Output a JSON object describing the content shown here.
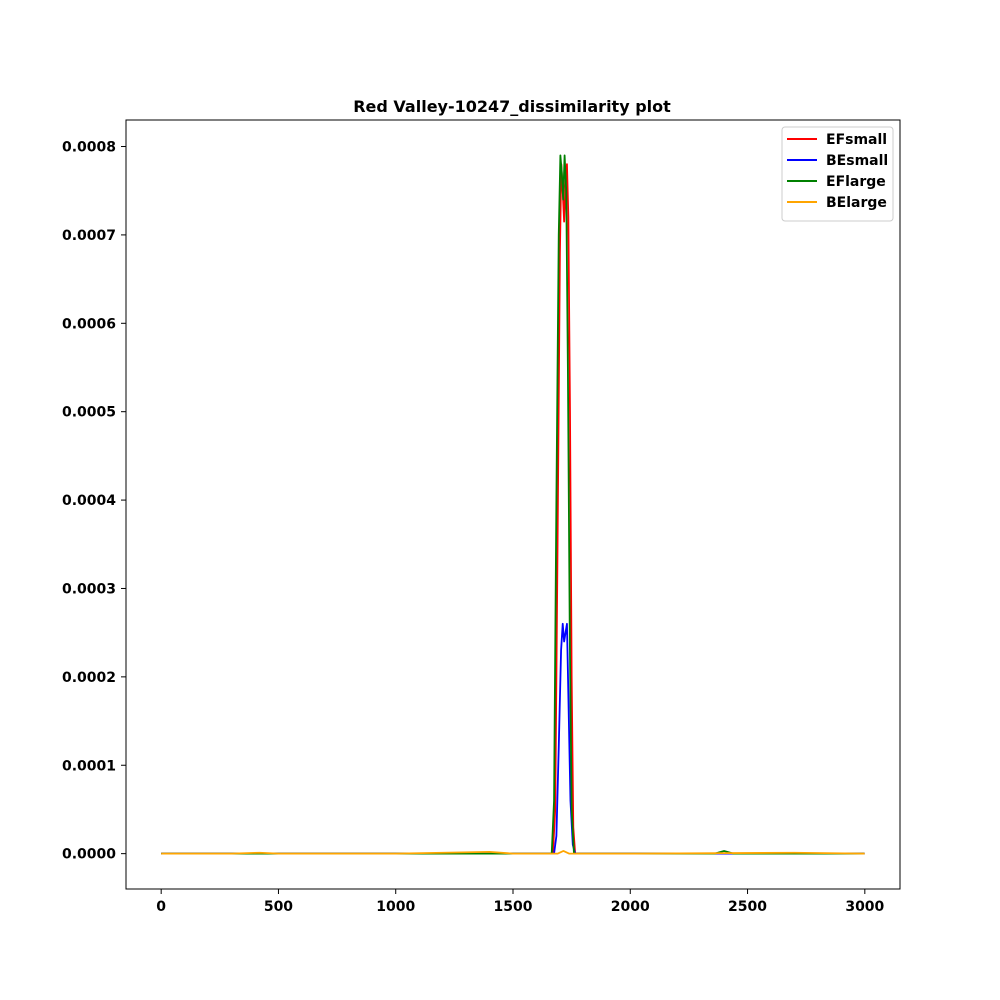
{
  "chart_data": {
    "type": "line",
    "title": "Red Valley-10247_dissimilarity plot",
    "xlabel": "",
    "ylabel": "",
    "xlim": [
      -150,
      3150
    ],
    "ylim": [
      -4e-05,
      0.00083
    ],
    "x_ticks": [
      0,
      500,
      1000,
      1500,
      2000,
      2500,
      3000
    ],
    "x_tick_labels": [
      "0",
      "500",
      "1000",
      "1500",
      "2000",
      "2500",
      "3000"
    ],
    "y_ticks": [
      0.0,
      0.0001,
      0.0002,
      0.0003,
      0.0004,
      0.0005,
      0.0006,
      0.0007,
      0.0008
    ],
    "y_tick_labels": [
      "0.0000",
      "0.0001",
      "0.0002",
      "0.0003",
      "0.0004",
      "0.0005",
      "0.0006",
      "0.0007",
      "0.0008"
    ],
    "grid": false,
    "legend_position": "top-right",
    "series": [
      {
        "name": "EFsmall",
        "color": "#ff0000",
        "points": [
          [
            0,
            0
          ],
          [
            1600,
            0
          ],
          [
            1670,
            0
          ],
          [
            1680,
            5e-05
          ],
          [
            1690,
            0.00035
          ],
          [
            1700,
            0.00068
          ],
          [
            1706,
            0.00078
          ],
          [
            1712,
            0.00075
          ],
          [
            1718,
            0.000715
          ],
          [
            1724,
            0.00076
          ],
          [
            1730,
            0.00078
          ],
          [
            1736,
            0.00072
          ],
          [
            1743,
            0.0005
          ],
          [
            1750,
            0.0002
          ],
          [
            1757,
            3e-05
          ],
          [
            1765,
            0
          ],
          [
            2000,
            0
          ],
          [
            2999,
            0
          ]
        ]
      },
      {
        "name": "BEsmall",
        "color": "#0000ff",
        "points": [
          [
            0,
            0
          ],
          [
            1600,
            0
          ],
          [
            1675,
            0
          ],
          [
            1685,
            2e-05
          ],
          [
            1695,
            0.00012
          ],
          [
            1705,
            0.00023
          ],
          [
            1712,
            0.00026
          ],
          [
            1718,
            0.00024
          ],
          [
            1724,
            0.00025
          ],
          [
            1730,
            0.00026
          ],
          [
            1736,
            0.00018
          ],
          [
            1745,
            6e-05
          ],
          [
            1755,
            1e-05
          ],
          [
            1765,
            0
          ],
          [
            2000,
            0
          ],
          [
            2999,
            0
          ]
        ]
      },
      {
        "name": "EFlarge",
        "color": "#008000",
        "points": [
          [
            0,
            0
          ],
          [
            1600,
            0
          ],
          [
            1665,
            0
          ],
          [
            1675,
            6e-05
          ],
          [
            1685,
            0.0004
          ],
          [
            1695,
            0.0007
          ],
          [
            1702,
            0.00079
          ],
          [
            1708,
            0.00077
          ],
          [
            1714,
            0.00074
          ],
          [
            1720,
            0.00079
          ],
          [
            1727,
            0.00075
          ],
          [
            1734,
            0.00055
          ],
          [
            1742,
            0.00025
          ],
          [
            1750,
            5e-05
          ],
          [
            1760,
            0
          ],
          [
            1800,
            0
          ],
          [
            2360,
            0
          ],
          [
            2400,
            3e-06
          ],
          [
            2440,
            0
          ],
          [
            2999,
            0
          ]
        ]
      },
      {
        "name": "BElarge",
        "color": "#ffa500",
        "points": [
          [
            0,
            0
          ],
          [
            300,
            0
          ],
          [
            420,
            1e-06
          ],
          [
            500,
            0
          ],
          [
            900,
            0
          ],
          [
            1000,
            0
          ],
          [
            1200,
            1e-06
          ],
          [
            1400,
            2e-06
          ],
          [
            1500,
            0
          ],
          [
            1690,
            0
          ],
          [
            1715,
            3e-06
          ],
          [
            1740,
            0
          ],
          [
            2000,
            0
          ],
          [
            2700,
            1e-06
          ],
          [
            2999,
            0
          ]
        ]
      }
    ]
  }
}
